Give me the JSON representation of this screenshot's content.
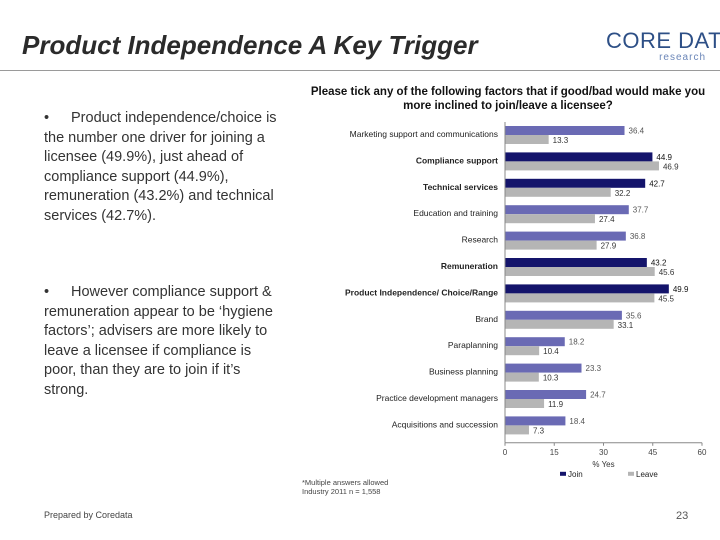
{
  "slide": {
    "title": "Product Independence A Key Trigger",
    "logo_main": "CORE DATA",
    "logo_sub": "research",
    "bullet_marker": "•",
    "bullets": [
      "Product independence/choice is the number one driver for joining a licensee (49.9%), just ahead of compliance support (44.9%), remuneration (43.2%) and technical services (42.7%).",
      "However compliance support & remuneration appear to be ‘hygiene factors’; advisers are more likely to leave a licensee if compliance is poor, than they are to join if it’s strong."
    ],
    "footnote_lines": [
      "*Multiple answers allowed",
      "Industry 2011 n = 1,558"
    ],
    "prepared_by": "Prepared by Coredata",
    "page_number": "23"
  },
  "chart_data": {
    "type": "bar",
    "orientation": "horizontal",
    "title": "Please tick any of the following factors that if good/bad would make you more inclined to join/leave a licensee?",
    "categories": [
      "Marketing support and communications",
      "Compliance support",
      "Technical services",
      "Education and training",
      "Research",
      "Remuneration",
      "Product Independence/ Choice/Range",
      "Brand",
      "Paraplanning",
      "Business planning",
      "Practice development managers",
      "Acquisitions and succession"
    ],
    "series": [
      {
        "name": "Join",
        "color": "#6a6ab4",
        "values": [
          36.4,
          44.9,
          42.7,
          37.7,
          36.8,
          43.2,
          49.9,
          35.6,
          18.2,
          23.3,
          24.7,
          18.4
        ]
      },
      {
        "name": "Leave",
        "color": "#b5b5b5",
        "values": [
          13.3,
          46.9,
          32.2,
          27.4,
          27.9,
          45.6,
          45.5,
          33.1,
          10.4,
          10.3,
          11.9,
          7.3
        ]
      }
    ],
    "highlight_join_color": "#14146b",
    "highlighted_categories": [
      "Compliance support",
      "Technical services",
      "Remuneration",
      "Product Independence/ Choice/Range"
    ],
    "xlabel": "% Yes",
    "xlim": [
      0,
      60
    ],
    "xticks": [
      0,
      15,
      30,
      45,
      60
    ],
    "xtick_labels": [
      "0",
      "15",
      "30",
      "45",
      "60"
    ],
    "legend": [
      "Join",
      "Leave"
    ],
    "legend_position": "bottom"
  }
}
